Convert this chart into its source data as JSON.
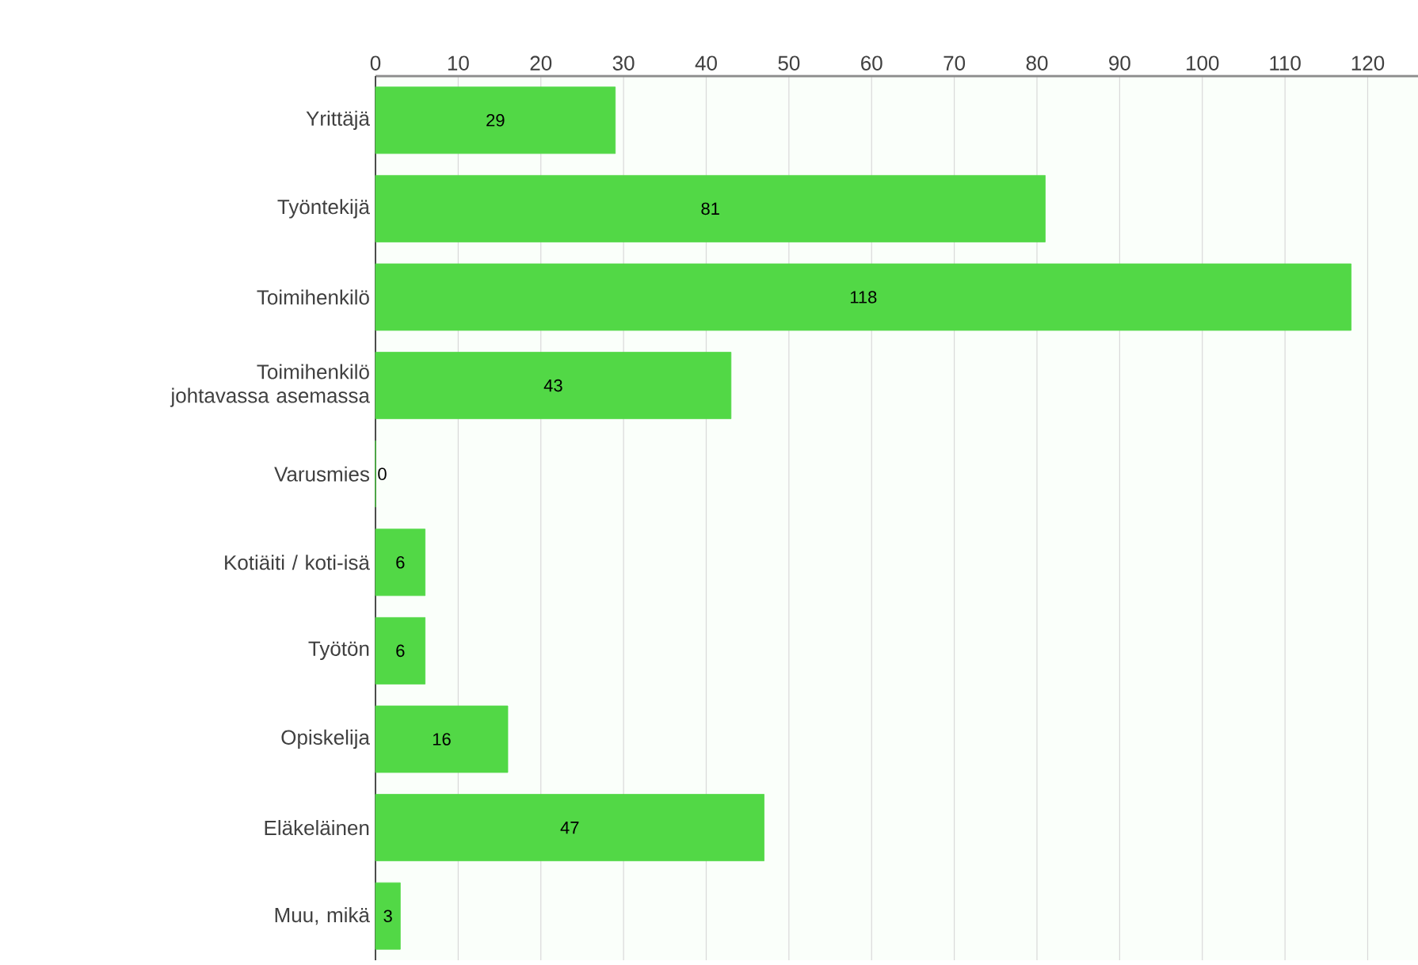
{
  "chart_data": {
    "type": "bar",
    "orientation": "horizontal",
    "categories": [
      "Yrittäjä",
      "Työntekijä",
      "Toimihenkilö",
      "Toimihenkilö johtavassa asemassa",
      "Varusmies",
      "Kotiäiti / koti-isä",
      "Työtön",
      "Opiskelija",
      "Eläkeläinen",
      "Muu, mikä"
    ],
    "values": [
      29,
      81,
      118,
      43,
      0,
      6,
      6,
      16,
      47,
      3
    ],
    "color": "#52d846",
    "xlim": [
      0,
      128
    ],
    "xticks": [
      0,
      10,
      20,
      30,
      40,
      50,
      60,
      70,
      80,
      90,
      100,
      110,
      120
    ],
    "grid": "x",
    "data_labels": true
  }
}
